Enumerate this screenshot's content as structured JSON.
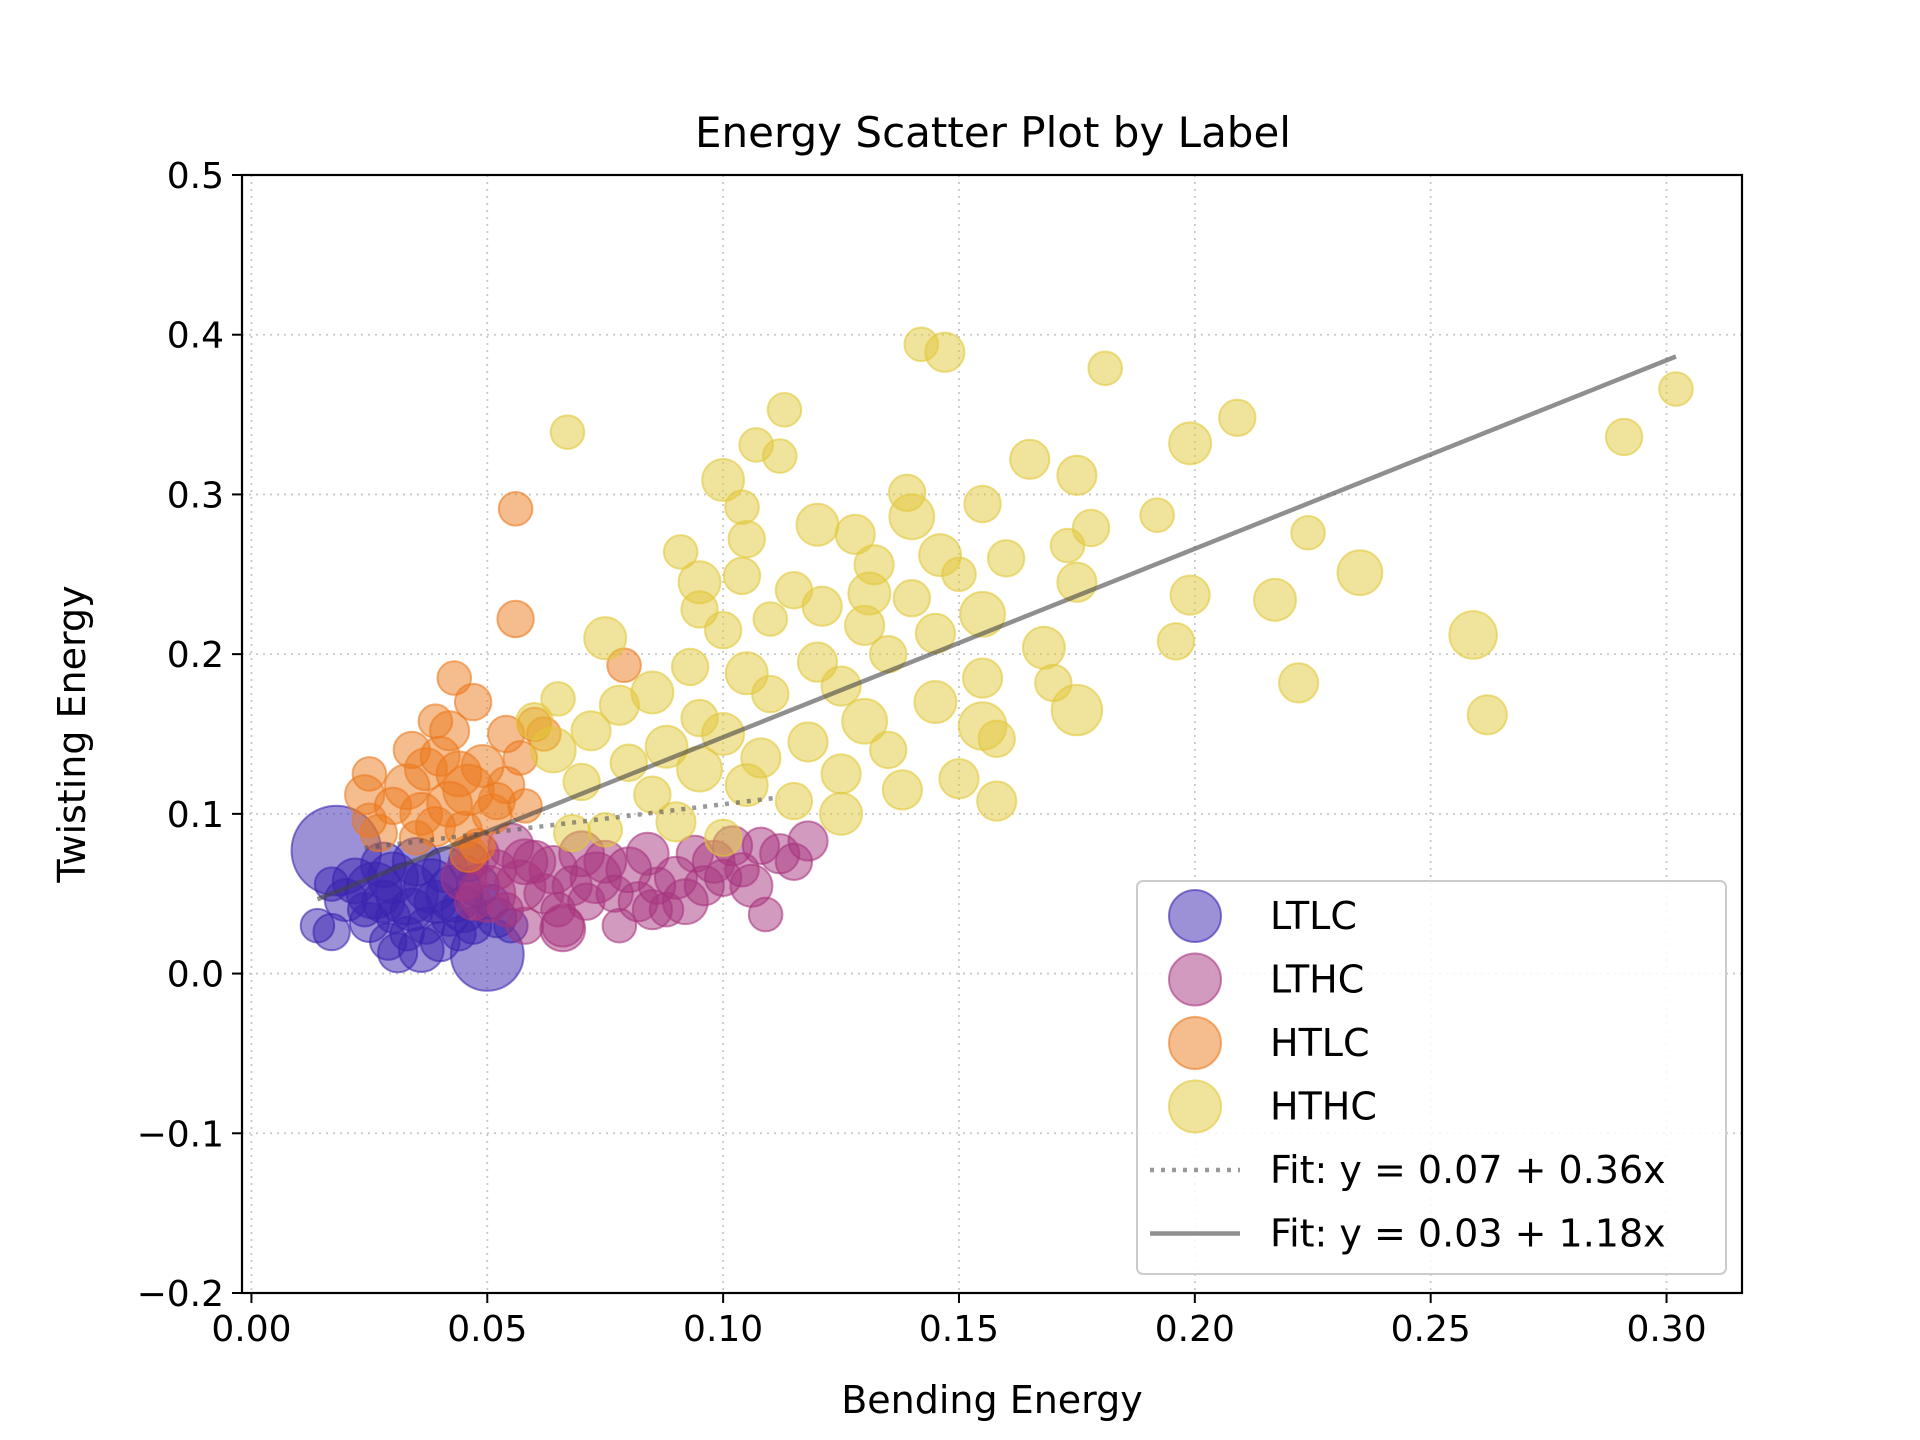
{
  "chart_data": {
    "type": "scatter",
    "title": "Energy Scatter Plot by Label",
    "xlabel": "Bending Energy",
    "ylabel": "Twisting Energy",
    "xlim": [
      -0.002,
      0.316
    ],
    "ylim": [
      -0.2,
      0.5
    ],
    "xticks": [
      0.0,
      0.05,
      0.1,
      0.15,
      0.2,
      0.25,
      0.3
    ],
    "xtick_labels": [
      "0.00",
      "0.05",
      "0.10",
      "0.15",
      "0.20",
      "0.25",
      "0.30"
    ],
    "yticks": [
      -0.2,
      -0.1,
      0.0,
      0.1,
      0.2,
      0.3,
      0.4,
      0.5
    ],
    "ytick_labels": [
      "−0.2",
      "−0.1",
      "0.0",
      "0.1",
      "0.2",
      "0.3",
      "0.4",
      "0.5"
    ],
    "grid": true,
    "legend_position": "lower-right",
    "series": [
      {
        "name": "LTLC",
        "color": "#3a24b0",
        "points": [
          [
            0.018,
            0.077,
            3.2
          ],
          [
            0.014,
            0.03,
            1.2
          ],
          [
            0.017,
            0.026,
            1.3
          ],
          [
            0.017,
            0.056,
            1.2
          ],
          [
            0.02,
            0.046,
            1.5
          ],
          [
            0.022,
            0.058,
            1.6
          ],
          [
            0.024,
            0.04,
            1.2
          ],
          [
            0.025,
            0.032,
            1.4
          ],
          [
            0.026,
            0.052,
            2.0
          ],
          [
            0.028,
            0.045,
            1.5
          ],
          [
            0.028,
            0.068,
            1.6
          ],
          [
            0.03,
            0.036,
            1.2
          ],
          [
            0.03,
            0.06,
            1.8
          ],
          [
            0.031,
            0.013,
            1.4
          ],
          [
            0.033,
            0.025,
            1.2
          ],
          [
            0.033,
            0.05,
            2.2
          ],
          [
            0.034,
            0.04,
            1.5
          ],
          [
            0.035,
            0.07,
            1.7
          ],
          [
            0.036,
            0.015,
            1.6
          ],
          [
            0.037,
            0.03,
            1.3
          ],
          [
            0.038,
            0.055,
            1.9
          ],
          [
            0.039,
            0.045,
            1.5
          ],
          [
            0.04,
            0.02,
            1.4
          ],
          [
            0.041,
            0.065,
            1.6
          ],
          [
            0.042,
            0.035,
            1.3
          ],
          [
            0.043,
            0.05,
            2.0
          ],
          [
            0.044,
            0.025,
            1.2
          ],
          [
            0.045,
            0.04,
            1.6
          ],
          [
            0.046,
            0.07,
            1.4
          ],
          [
            0.047,
            0.03,
            1.3
          ],
          [
            0.048,
            0.055,
            1.5
          ],
          [
            0.05,
            0.012,
            2.6
          ],
          [
            0.051,
            0.045,
            1.2
          ],
          [
            0.052,
            0.035,
            1.4
          ],
          [
            0.055,
            0.03,
            1.2
          ],
          [
            0.029,
            0.02,
            1.3
          ]
        ]
      },
      {
        "name": "LTHC",
        "color": "#a8357f",
        "points": [
          [
            0.045,
            0.06,
            1.6
          ],
          [
            0.047,
            0.045,
            1.3
          ],
          [
            0.048,
            0.075,
            1.5
          ],
          [
            0.05,
            0.05,
            2.0
          ],
          [
            0.052,
            0.065,
            1.4
          ],
          [
            0.054,
            0.04,
            1.2
          ],
          [
            0.055,
            0.08,
            1.6
          ],
          [
            0.057,
            0.055,
            1.8
          ],
          [
            0.058,
            0.03,
            1.3
          ],
          [
            0.06,
            0.07,
            1.5
          ],
          [
            0.062,
            0.05,
            1.4
          ],
          [
            0.064,
            0.065,
            1.7
          ],
          [
            0.065,
            0.04,
            1.2
          ],
          [
            0.066,
            0.03,
            1.5
          ],
          [
            0.068,
            0.055,
            1.4
          ],
          [
            0.07,
            0.075,
            1.6
          ],
          [
            0.071,
            0.045,
            1.3
          ],
          [
            0.073,
            0.06,
            1.8
          ],
          [
            0.075,
            0.07,
            1.5
          ],
          [
            0.077,
            0.05,
            1.3
          ],
          [
            0.078,
            0.03,
            1.2
          ],
          [
            0.08,
            0.065,
            1.6
          ],
          [
            0.082,
            0.045,
            1.4
          ],
          [
            0.084,
            0.075,
            1.5
          ],
          [
            0.086,
            0.055,
            1.3
          ],
          [
            0.088,
            0.04,
            1.2
          ],
          [
            0.09,
            0.06,
            1.5
          ],
          [
            0.092,
            0.045,
            1.6
          ],
          [
            0.094,
            0.075,
            1.3
          ],
          [
            0.096,
            0.055,
            1.4
          ],
          [
            0.098,
            0.07,
            1.5
          ],
          [
            0.1,
            0.06,
            1.3
          ],
          [
            0.102,
            0.08,
            1.4
          ],
          [
            0.104,
            0.065,
            1.2
          ],
          [
            0.106,
            0.055,
            1.5
          ],
          [
            0.108,
            0.08,
            1.3
          ],
          [
            0.109,
            0.037,
            1.2
          ],
          [
            0.112,
            0.075,
            1.4
          ],
          [
            0.115,
            0.07,
            1.3
          ],
          [
            0.118,
            0.083,
            1.4
          ],
          [
            0.066,
            0.028,
            1.6
          ],
          [
            0.085,
            0.04,
            1.4
          ],
          [
            0.058,
            0.07,
            1.6
          ]
        ]
      },
      {
        "name": "HTLC",
        "color": "#ec7a1e",
        "points": [
          [
            0.056,
            0.291,
            1.2
          ],
          [
            0.056,
            0.222,
            1.3
          ],
          [
            0.079,
            0.193,
            1.2
          ],
          [
            0.043,
            0.185,
            1.2
          ],
          [
            0.047,
            0.17,
            1.3
          ],
          [
            0.039,
            0.158,
            1.2
          ],
          [
            0.042,
            0.152,
            1.4
          ],
          [
            0.054,
            0.15,
            1.3
          ],
          [
            0.06,
            0.156,
            1.2
          ],
          [
            0.034,
            0.14,
            1.3
          ],
          [
            0.037,
            0.128,
            1.5
          ],
          [
            0.04,
            0.136,
            1.4
          ],
          [
            0.044,
            0.125,
            1.6
          ],
          [
            0.046,
            0.115,
            1.8
          ],
          [
            0.049,
            0.13,
            1.5
          ],
          [
            0.052,
            0.108,
            1.3
          ],
          [
            0.025,
            0.125,
            1.2
          ],
          [
            0.024,
            0.112,
            1.4
          ],
          [
            0.025,
            0.096,
            1.2
          ],
          [
            0.027,
            0.088,
            1.3
          ],
          [
            0.033,
            0.117,
            1.6
          ],
          [
            0.036,
            0.1,
            1.5
          ],
          [
            0.039,
            0.092,
            1.4
          ],
          [
            0.042,
            0.106,
            1.6
          ],
          [
            0.045,
            0.09,
            1.3
          ],
          [
            0.048,
            0.08,
            1.2
          ],
          [
            0.051,
            0.1,
            1.4
          ],
          [
            0.054,
            0.118,
            1.3
          ],
          [
            0.057,
            0.135,
            1.2
          ],
          [
            0.03,
            0.105,
            1.3
          ],
          [
            0.035,
            0.085,
            1.2
          ],
          [
            0.046,
            0.075,
            1.3
          ],
          [
            0.058,
            0.105,
            1.2
          ],
          [
            0.062,
            0.15,
            1.2
          ]
        ]
      },
      {
        "name": "HTHC",
        "color": "#e1c83a",
        "points": [
          [
            0.142,
            0.394,
            1.2
          ],
          [
            0.147,
            0.389,
            1.4
          ],
          [
            0.181,
            0.379,
            1.2
          ],
          [
            0.302,
            0.366,
            1.2
          ],
          [
            0.113,
            0.353,
            1.2
          ],
          [
            0.209,
            0.348,
            1.3
          ],
          [
            0.067,
            0.339,
            1.2
          ],
          [
            0.291,
            0.336,
            1.3
          ],
          [
            0.199,
            0.332,
            1.5
          ],
          [
            0.107,
            0.331,
            1.2
          ],
          [
            0.112,
            0.324,
            1.2
          ],
          [
            0.165,
            0.322,
            1.4
          ],
          [
            0.1,
            0.309,
            1.5
          ],
          [
            0.175,
            0.312,
            1.4
          ],
          [
            0.139,
            0.301,
            1.3
          ],
          [
            0.155,
            0.294,
            1.3
          ],
          [
            0.104,
            0.292,
            1.2
          ],
          [
            0.14,
            0.286,
            1.6
          ],
          [
            0.192,
            0.287,
            1.2
          ],
          [
            0.12,
            0.281,
            1.5
          ],
          [
            0.178,
            0.279,
            1.3
          ],
          [
            0.128,
            0.275,
            1.4
          ],
          [
            0.224,
            0.276,
            1.2
          ],
          [
            0.105,
            0.272,
            1.3
          ],
          [
            0.173,
            0.268,
            1.2
          ],
          [
            0.091,
            0.264,
            1.2
          ],
          [
            0.146,
            0.262,
            1.5
          ],
          [
            0.16,
            0.26,
            1.3
          ],
          [
            0.132,
            0.256,
            1.4
          ],
          [
            0.235,
            0.251,
            1.6
          ],
          [
            0.104,
            0.249,
            1.3
          ],
          [
            0.15,
            0.25,
            1.2
          ],
          [
            0.095,
            0.245,
            1.5
          ],
          [
            0.175,
            0.245,
            1.4
          ],
          [
            0.115,
            0.24,
            1.3
          ],
          [
            0.131,
            0.238,
            1.5
          ],
          [
            0.199,
            0.237,
            1.4
          ],
          [
            0.217,
            0.234,
            1.5
          ],
          [
            0.14,
            0.235,
            1.3
          ],
          [
            0.121,
            0.23,
            1.4
          ],
          [
            0.095,
            0.228,
            1.3
          ],
          [
            0.155,
            0.225,
            1.6
          ],
          [
            0.11,
            0.222,
            1.2
          ],
          [
            0.13,
            0.218,
            1.4
          ],
          [
            0.259,
            0.212,
            1.7
          ],
          [
            0.075,
            0.21,
            1.5
          ],
          [
            0.1,
            0.215,
            1.3
          ],
          [
            0.145,
            0.213,
            1.4
          ],
          [
            0.196,
            0.208,
            1.3
          ],
          [
            0.168,
            0.204,
            1.5
          ],
          [
            0.135,
            0.2,
            1.3
          ],
          [
            0.12,
            0.195,
            1.4
          ],
          [
            0.093,
            0.192,
            1.3
          ],
          [
            0.105,
            0.188,
            1.5
          ],
          [
            0.155,
            0.185,
            1.4
          ],
          [
            0.222,
            0.182,
            1.4
          ],
          [
            0.17,
            0.182,
            1.3
          ],
          [
            0.125,
            0.18,
            1.4
          ],
          [
            0.085,
            0.176,
            1.5
          ],
          [
            0.11,
            0.175,
            1.3
          ],
          [
            0.065,
            0.172,
            1.2
          ],
          [
            0.145,
            0.17,
            1.5
          ],
          [
            0.262,
            0.162,
            1.4
          ],
          [
            0.175,
            0.165,
            1.8
          ],
          [
            0.078,
            0.168,
            1.4
          ],
          [
            0.095,
            0.16,
            1.3
          ],
          [
            0.13,
            0.158,
            1.6
          ],
          [
            0.06,
            0.158,
            1.3
          ],
          [
            0.155,
            0.155,
            1.7
          ],
          [
            0.072,
            0.152,
            1.4
          ],
          [
            0.1,
            0.15,
            1.5
          ],
          [
            0.158,
            0.147,
            1.3
          ],
          [
            0.118,
            0.145,
            1.4
          ],
          [
            0.088,
            0.142,
            1.5
          ],
          [
            0.135,
            0.14,
            1.3
          ],
          [
            0.064,
            0.14,
            1.6
          ],
          [
            0.108,
            0.135,
            1.4
          ],
          [
            0.08,
            0.132,
            1.3
          ],
          [
            0.095,
            0.128,
            1.6
          ],
          [
            0.125,
            0.125,
            1.4
          ],
          [
            0.15,
            0.122,
            1.4
          ],
          [
            0.07,
            0.12,
            1.3
          ],
          [
            0.105,
            0.118,
            1.5
          ],
          [
            0.138,
            0.115,
            1.4
          ],
          [
            0.085,
            0.112,
            1.3
          ],
          [
            0.158,
            0.108,
            1.4
          ],
          [
            0.115,
            0.108,
            1.3
          ],
          [
            0.125,
            0.1,
            1.5
          ],
          [
            0.09,
            0.095,
            1.4
          ],
          [
            0.075,
            0.09,
            1.2
          ],
          [
            0.068,
            0.088,
            1.3
          ],
          [
            0.1,
            0.085,
            1.3
          ]
        ]
      }
    ],
    "fits": [
      {
        "label": "Fit: y = 0.07 + 0.36x",
        "style": "dotted",
        "color": "#555555",
        "intercept": 0.07,
        "slope": 0.36,
        "x_range": [
          0.024,
          0.112
        ]
      },
      {
        "label": "Fit: y = 0.03 + 1.18x",
        "style": "solid",
        "color": "#444444",
        "intercept": 0.03,
        "slope": 1.18,
        "x_range": [
          0.014,
          0.302
        ]
      }
    ]
  }
}
